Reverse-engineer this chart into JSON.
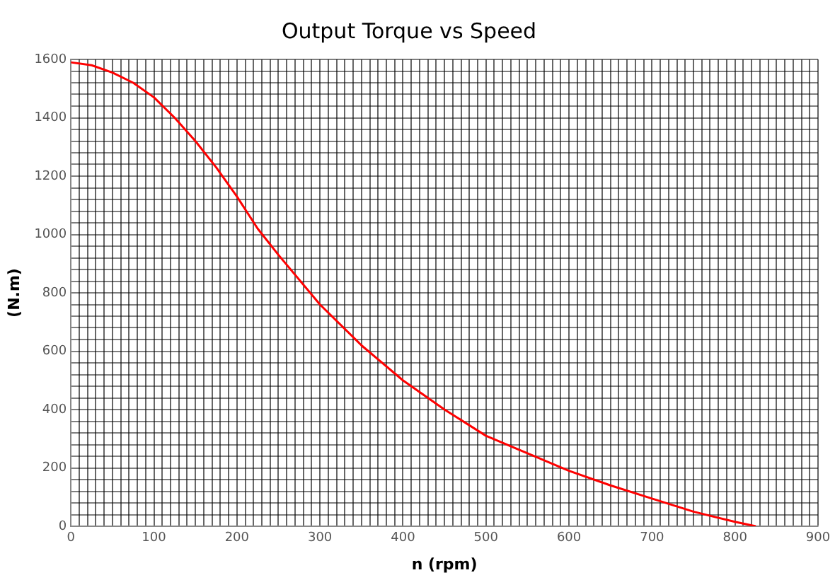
{
  "chart_data": {
    "type": "line",
    "title": "Output Torque vs Speed",
    "xlabel": "n (rpm)",
    "ylabel": "(N.m)",
    "x": [
      0,
      25,
      50,
      75,
      100,
      125,
      150,
      175,
      200,
      225,
      250,
      300,
      350,
      400,
      450,
      500,
      550,
      600,
      650,
      700,
      750,
      800,
      825
    ],
    "series": [
      {
        "color": "#ff0000",
        "values": [
          1590,
          1580,
          1555,
          1520,
          1470,
          1400,
          1320,
          1230,
          1130,
          1020,
          930,
          760,
          620,
          500,
          400,
          310,
          250,
          190,
          140,
          95,
          50,
          15,
          0
        ]
      }
    ],
    "xlim": [
      0,
      900
    ],
    "xticks": [
      0,
      {
        "value": 10,
        "label": null
      },
      {
        "value": 20,
        "label": null
      },
      {
        "value": 30,
        "label": null
      },
      {
        "value": 40,
        "label": null
      },
      {
        "value": 50,
        "label": null
      },
      {
        "value": 60,
        "label": null
      },
      {
        "value": 70,
        "label": null
      },
      {
        "value": 80,
        "label": null
      },
      {
        "value": 90,
        "label": null
      },
      100,
      {
        "value": 110,
        "label": null
      },
      {
        "value": 120,
        "label": null
      },
      {
        "value": 130,
        "label": null
      },
      {
        "value": 140,
        "label": null
      },
      {
        "value": 150,
        "label": null
      },
      {
        "value": 160,
        "label": null
      },
      {
        "value": 170,
        "label": null
      },
      {
        "value": 180,
        "label": null
      },
      {
        "value": 190,
        "label": null
      },
      200,
      {
        "value": 210,
        "label": null
      },
      {
        "value": 220,
        "label": null
      },
      {
        "value": 230,
        "label": null
      },
      {
        "value": 240,
        "label": null
      },
      {
        "value": 250,
        "label": null
      },
      {
        "value": 260,
        "label": null
      },
      {
        "value": 270,
        "label": null
      },
      {
        "value": 280,
        "label": null
      },
      {
        "value": 290,
        "label": null
      },
      300,
      {
        "value": 310,
        "label": null
      },
      {
        "value": 320,
        "label": null
      },
      {
        "value": 330,
        "label": null
      },
      {
        "value": 340,
        "label": null
      },
      {
        "value": 350,
        "label": null
      },
      {
        "value": 360,
        "label": null
      },
      {
        "value": 370,
        "label": null
      },
      {
        "value": 380,
        "label": null
      },
      {
        "value": 390,
        "label": null
      },
      400,
      {
        "value": 410,
        "label": null
      },
      {
        "value": 420,
        "label": null
      },
      {
        "value": 430,
        "label": null
      },
      {
        "value": 440,
        "label": null
      },
      {
        "value": 450,
        "label": null
      },
      {
        "value": 460,
        "label": null
      },
      {
        "value": 470,
        "label": null
      },
      {
        "value": 480,
        "label": null
      },
      {
        "value": 490,
        "label": null
      },
      500,
      {
        "value": 510,
        "label": null
      },
      {
        "value": 520,
        "label": null
      },
      {
        "value": 530,
        "label": null
      },
      {
        "value": 540,
        "label": null
      },
      {
        "value": 550,
        "label": null
      },
      {
        "value": 560,
        "label": null
      },
      {
        "value": 570,
        "label": null
      },
      {
        "value": 580,
        "label": null
      },
      {
        "value": 590,
        "label": null
      },
      600,
      {
        "value": 610,
        "label": null
      },
      {
        "value": 620,
        "label": null
      },
      {
        "value": 630,
        "label": null
      },
      {
        "value": 640,
        "label": null
      },
      {
        "value": 650,
        "label": null
      },
      {
        "value": 660,
        "label": null
      },
      {
        "value": 670,
        "label": null
      },
      {
        "value": 680,
        "label": null
      },
      {
        "value": 690,
        "label": null
      },
      700,
      {
        "value": 710,
        "label": null
      },
      {
        "value": 720,
        "label": null
      },
      {
        "value": 730,
        "label": null
      },
      {
        "value": 740,
        "label": null
      },
      {
        "value": 750,
        "label": null
      },
      {
        "value": 760,
        "label": null
      },
      {
        "value": 770,
        "label": null
      },
      {
        "value": 780,
        "label": null
      },
      {
        "value": 790,
        "label": null
      },
      800,
      {
        "value": 810,
        "label": null
      },
      {
        "value": 820,
        "label": null
      },
      {
        "value": 830,
        "label": null
      },
      {
        "value": 840,
        "label": null
      },
      {
        "value": 850,
        "label": null
      },
      {
        "value": 860,
        "label": null
      },
      {
        "value": 870,
        "label": null
      },
      {
        "value": 880,
        "label": null
      },
      {
        "value": 890,
        "label": null
      },
      900
    ],
    "ylim": [
      0,
      1600
    ],
    "yticks": [
      0,
      {
        "value": 40,
        "label": null
      },
      {
        "value": 80,
        "label": null
      },
      {
        "value": 120,
        "label": null
      },
      {
        "value": 160,
        "label": null
      },
      200,
      {
        "value": 240,
        "label": null
      },
      {
        "value": 280,
        "label": null
      },
      {
        "value": 320,
        "label": null
      },
      {
        "value": 360,
        "label": null
      },
      400,
      {
        "value": 440,
        "label": null
      },
      {
        "value": 480,
        "label": null
      },
      {
        "value": 520,
        "label": null
      },
      {
        "value": 560,
        "label": null
      },
      600,
      {
        "value": 640,
        "label": null
      },
      {
        "value": 680,
        "label": null
      },
      {
        "value": 720,
        "label": null
      },
      {
        "value": 760,
        "label": null
      },
      800,
      {
        "value": 840,
        "label": null
      },
      {
        "value": 880,
        "label": null
      },
      {
        "value": 920,
        "label": null
      },
      {
        "value": 960,
        "label": null
      },
      1000,
      {
        "value": 1040,
        "label": null
      },
      {
        "value": 1080,
        "label": null
      },
      {
        "value": 1120,
        "label": null
      },
      {
        "value": 1160,
        "label": null
      },
      1200,
      {
        "value": 1240,
        "label": null
      },
      {
        "value": 1280,
        "label": null
      },
      {
        "value": 1320,
        "label": null
      },
      {
        "value": 1360,
        "label": null
      },
      1400,
      {
        "value": 1440,
        "label": null
      },
      {
        "value": 1480,
        "label": null
      },
      {
        "value": 1520,
        "label": null
      },
      {
        "value": 1560,
        "label": null
      },
      1600
    ],
    "grid": true,
    "marker": "none",
    "line_style": "solid"
  }
}
